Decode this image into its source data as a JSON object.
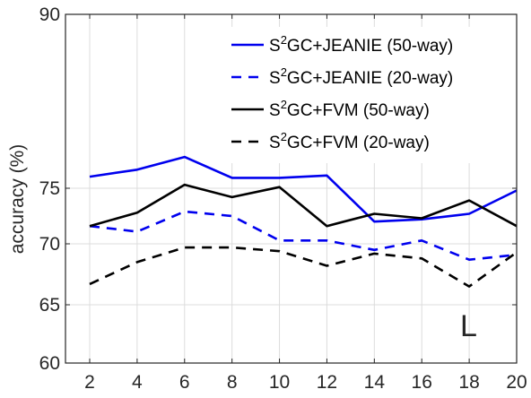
{
  "chart_data": {
    "type": "line",
    "title": "",
    "xlabel": "",
    "ylabel": "accuracy (%)",
    "x": [
      2,
      4,
      6,
      8,
      10,
      12,
      14,
      16,
      18,
      20
    ],
    "xticks": [
      2,
      4,
      6,
      8,
      10,
      12,
      14,
      16,
      18,
      20
    ],
    "xlim": [
      2,
      20
    ],
    "yticks": [
      60,
      65,
      70,
      75,
      90
    ],
    "ylim": [
      60,
      90
    ],
    "y_scale": "nonlinear (tick labels 60, 65, 70, 75, 90)",
    "grid": true,
    "legend_position": "top-right",
    "annotation": "L",
    "series": [
      {
        "name_base": "S",
        "name_sup": "2",
        "name_rest": "GC+JEANIE (50-way)",
        "color": "#0000ee",
        "dash": "solid",
        "values": [
          76.0,
          76.6,
          77.7,
          75.9,
          75.9,
          76.1,
          72.0,
          72.2,
          72.7,
          74.8
        ]
      },
      {
        "name_base": "S",
        "name_sup": "2",
        "name_rest": "GC+JEANIE (20-way)",
        "color": "#0000ee",
        "dash": "dashed",
        "values": [
          71.6,
          71.1,
          72.9,
          72.5,
          70.3,
          70.3,
          69.5,
          70.3,
          68.7,
          69.1
        ]
      },
      {
        "name_base": "S",
        "name_sup": "2",
        "name_rest": "GC+FVM (50-way)",
        "color": "#000000",
        "dash": "solid",
        "values": [
          71.6,
          72.8,
          75.3,
          74.2,
          75.1,
          71.6,
          72.7,
          72.3,
          73.9,
          71.6
        ]
      },
      {
        "name_base": "S",
        "name_sup": "2",
        "name_rest": "GC+FVM (20-way)",
        "color": "#000000",
        "dash": "dashed",
        "values": [
          66.7,
          68.5,
          69.7,
          69.7,
          69.4,
          68.2,
          69.2,
          68.8,
          66.5,
          69.3
        ]
      }
    ]
  }
}
